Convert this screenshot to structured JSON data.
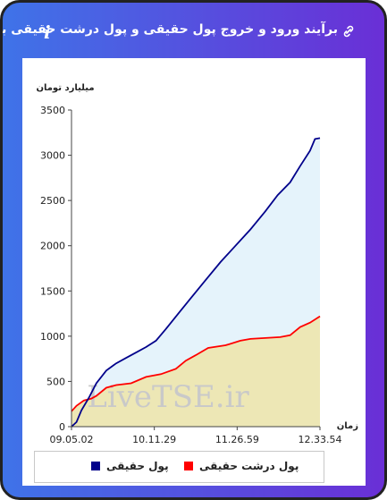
{
  "header": {
    "title": "برآیند ورود و خروج پول حقیقی و پول درشت حقیقی به بازار",
    "info_symbol": "i",
    "info_icon": "info-icon",
    "link_icon": "link-icon"
  },
  "watermark": "LiveTSE.ir",
  "colors": {
    "gradient_start": "#3f73e8",
    "gradient_end": "#6a2fd6",
    "real_money": "#00008b",
    "big_real_money": "#ff0000",
    "real_money_fill": "#e5f3fb",
    "big_real_money_fill": "#ede7b5"
  },
  "chart_data": {
    "type": "area",
    "ylabel": "میلیارد تومان",
    "xlabel": "زمان",
    "ylim": [
      0,
      3500
    ],
    "yticks": [
      "0",
      "500",
      "1000",
      "1500",
      "2000",
      "2500",
      "3000",
      "3500"
    ],
    "xticks": [
      "09.05.02",
      "10.11.29",
      "11.26.59",
      "12.33.54"
    ],
    "grid": false,
    "legend_position": "bottom",
    "series": [
      {
        "name": "پول حقیقی",
        "color": "#00008b",
        "points": [
          [
            0,
            0
          ],
          [
            0.02,
            50
          ],
          [
            0.04,
            180
          ],
          [
            0.07,
            320
          ],
          [
            0.1,
            480
          ],
          [
            0.14,
            620
          ],
          [
            0.18,
            700
          ],
          [
            0.22,
            760
          ],
          [
            0.26,
            820
          ],
          [
            0.3,
            880
          ],
          [
            0.34,
            950
          ],
          [
            0.38,
            1080
          ],
          [
            0.43,
            1250
          ],
          [
            0.48,
            1420
          ],
          [
            0.54,
            1620
          ],
          [
            0.6,
            1820
          ],
          [
            0.66,
            2000
          ],
          [
            0.72,
            2180
          ],
          [
            0.78,
            2380
          ],
          [
            0.83,
            2560
          ],
          [
            0.88,
            2700
          ],
          [
            0.92,
            2880
          ],
          [
            0.96,
            3050
          ],
          [
            0.98,
            3180
          ],
          [
            1.0,
            3190
          ]
        ]
      },
      {
        "name": "پول درشت حقیقی",
        "color": "#ff0000",
        "points": [
          [
            0,
            170
          ],
          [
            0.02,
            230
          ],
          [
            0.05,
            290
          ],
          [
            0.08,
            310
          ],
          [
            0.1,
            340
          ],
          [
            0.14,
            430
          ],
          [
            0.18,
            460
          ],
          [
            0.24,
            480
          ],
          [
            0.3,
            550
          ],
          [
            0.36,
            580
          ],
          [
            0.42,
            640
          ],
          [
            0.46,
            730
          ],
          [
            0.5,
            790
          ],
          [
            0.55,
            870
          ],
          [
            0.62,
            900
          ],
          [
            0.68,
            950
          ],
          [
            0.72,
            970
          ],
          [
            0.78,
            980
          ],
          [
            0.84,
            990
          ],
          [
            0.88,
            1010
          ],
          [
            0.92,
            1100
          ],
          [
            0.96,
            1150
          ],
          [
            1.0,
            1220
          ]
        ]
      }
    ]
  },
  "legend": {
    "real_money": "پول حقیقی",
    "big_real_money": "پول درشت حقیقی"
  }
}
